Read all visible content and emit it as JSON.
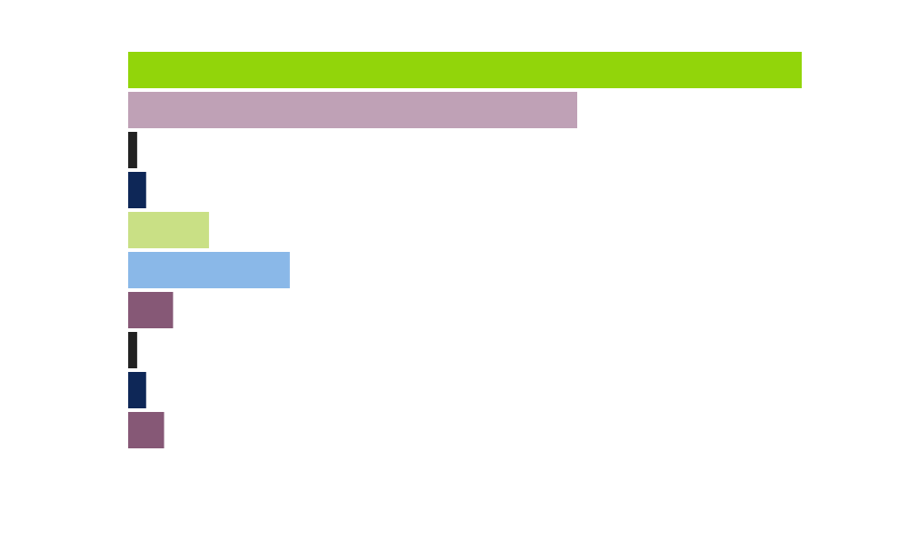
{
  "chart_data": {
    "type": "bar",
    "orientation": "horizontal",
    "categories": [
      "",
      "",
      "",
      "",
      "",
      "",
      "",
      "",
      "",
      ""
    ],
    "values": [
      75,
      50,
      1,
      2,
      9,
      18,
      5,
      1,
      2,
      4
    ],
    "colors": [
      "#92d50a",
      "#bfa1b6",
      "#222222",
      "#0e2757",
      "#c9e085",
      "#8ab8e8",
      "#865876",
      "#222222",
      "#0e2757",
      "#865876"
    ],
    "xlim": [
      0,
      75
    ],
    "title": "",
    "xlabel": "",
    "ylabel": "",
    "grid": false,
    "legend": "none"
  }
}
